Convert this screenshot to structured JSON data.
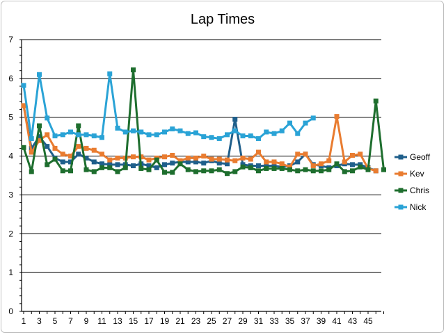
{
  "chart_data": {
    "type": "line",
    "title": "Lap Times",
    "xlabel": "",
    "ylabel": "",
    "ylim": [
      0,
      7
    ],
    "yticks": [
      0,
      1,
      2,
      3,
      4,
      5,
      6,
      7
    ],
    "x_range": [
      1,
      47
    ],
    "xtick_labels": [
      1,
      3,
      5,
      7,
      9,
      11,
      13,
      15,
      17,
      19,
      21,
      23,
      25,
      27,
      29,
      31,
      33,
      35,
      37,
      39,
      41,
      43,
      45
    ],
    "grid": "horizontal",
    "legend_position": "right",
    "series": [
      {
        "name": "Geoff",
        "color": "#1f5f8b",
        "marker": "square",
        "values": [
          5.3,
          4.2,
          4.5,
          4.25,
          3.95,
          3.85,
          3.85,
          4.05,
          3.95,
          3.85,
          3.8,
          3.78,
          3.78,
          3.78,
          3.75,
          3.8,
          3.75,
          3.7,
          3.78,
          3.82,
          3.85,
          3.85,
          3.85,
          3.82,
          3.88,
          3.82,
          3.8,
          4.95,
          3.78,
          3.75,
          3.75,
          3.75,
          3.75,
          3.72,
          3.75,
          3.85,
          4.05,
          3.78,
          3.75,
          3.7,
          3.75,
          3.8,
          3.78,
          3.78,
          3.7,
          3.62
        ]
      },
      {
        "name": "Kev",
        "color": "#e97c30",
        "marker": "square",
        "values": [
          5.3,
          4.1,
          4.4,
          4.55,
          4.2,
          4.05,
          4.0,
          4.25,
          4.2,
          4.15,
          4.05,
          3.9,
          3.95,
          3.95,
          3.98,
          3.98,
          3.9,
          3.95,
          3.98,
          4.02,
          3.88,
          3.95,
          3.95,
          4.0,
          3.92,
          3.92,
          3.9,
          3.88,
          3.95,
          3.92,
          4.1,
          3.85,
          3.85,
          3.8,
          3.72,
          4.05,
          4.05,
          3.75,
          3.8,
          3.88,
          5.02,
          3.85,
          4.02,
          4.05,
          3.68,
          3.62
        ]
      },
      {
        "name": "Chris",
        "color": "#1e6e2e",
        "marker": "square",
        "values": [
          4.22,
          3.6,
          4.78,
          3.78,
          3.92,
          3.62,
          3.62,
          4.78,
          3.65,
          3.6,
          3.7,
          3.7,
          3.6,
          3.7,
          6.22,
          3.68,
          3.65,
          3.9,
          3.58,
          3.58,
          3.8,
          3.65,
          3.6,
          3.62,
          3.62,
          3.65,
          3.55,
          3.6,
          3.72,
          3.7,
          3.62,
          3.68,
          3.68,
          3.68,
          3.65,
          3.62,
          3.65,
          3.62,
          3.62,
          3.65,
          3.8,
          3.6,
          3.62,
          3.72,
          3.65,
          5.42,
          3.65
        ]
      },
      {
        "name": "Nick",
        "color": "#2aa3d6",
        "marker": "square",
        "values": [
          5.82,
          4.45,
          6.1,
          4.98,
          4.52,
          4.55,
          4.62,
          4.55,
          4.55,
          4.52,
          4.48,
          6.12,
          4.72,
          4.62,
          4.65,
          4.62,
          4.55,
          4.55,
          4.62,
          4.7,
          4.65,
          4.58,
          4.6,
          4.5,
          4.48,
          4.45,
          4.55,
          4.65,
          4.52,
          4.52,
          4.45,
          4.62,
          4.58,
          4.65,
          4.85,
          4.58,
          4.85,
          4.98
        ]
      }
    ]
  }
}
